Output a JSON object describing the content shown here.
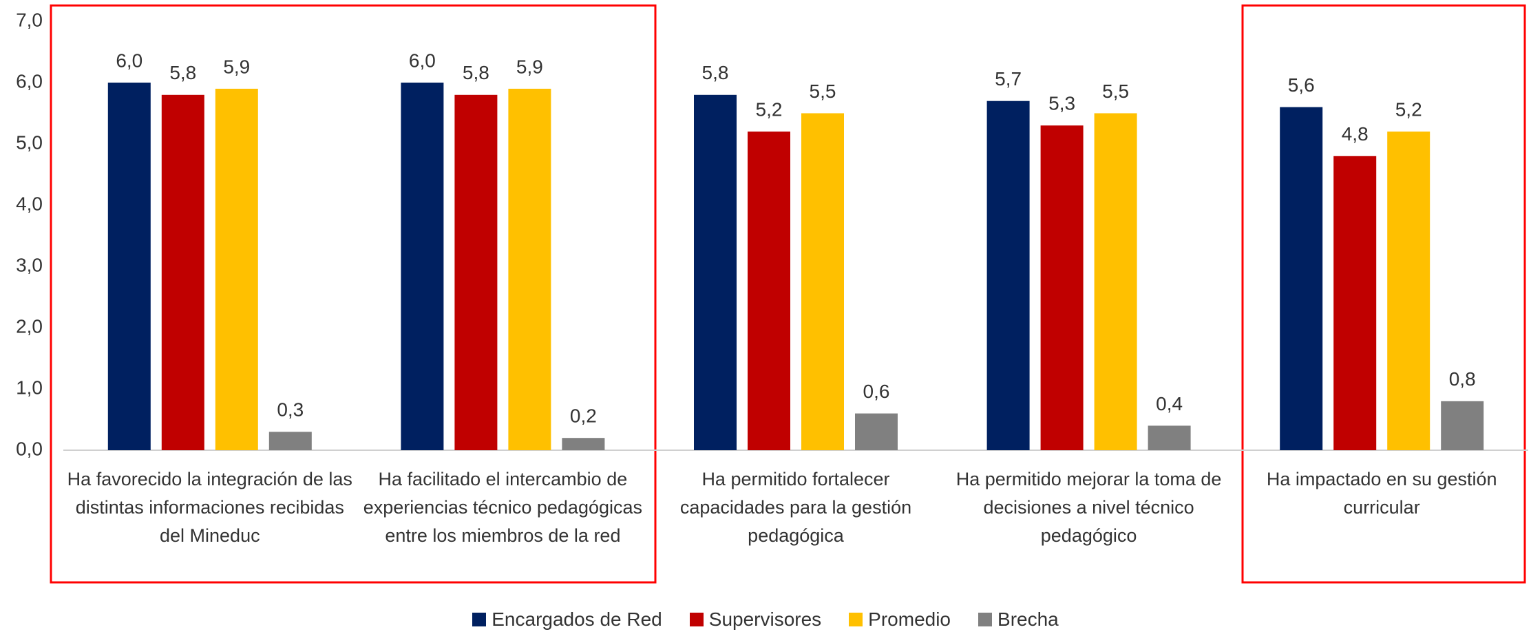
{
  "chart_data": {
    "type": "bar",
    "categories": [
      "Ha  favorecido la  integración de las  distintas informaciones recibidas del Mineduc",
      "Ha facilitado el intercambio de experiencias técnico pedagógicas entre los miembros de la red",
      "Ha permitido fortalecer capacidades para la gestión pedagógica",
      "Ha permitido mejorar la toma de decisiones a nivel técnico pedagógico",
      "Ha impactado en su gestión curricular"
    ],
    "series": [
      {
        "name": "Encargados de Red",
        "color": "#002060",
        "values": [
          6.0,
          6.0,
          5.8,
          5.7,
          5.6
        ],
        "value_labels": [
          "6,0",
          "6,0",
          "5,8",
          "5,7",
          "5,6"
        ]
      },
      {
        "name": "Supervisores",
        "color": "#c00000",
        "values": [
          5.8,
          5.8,
          5.2,
          5.3,
          4.8
        ],
        "value_labels": [
          "5,8",
          "5,8",
          "5,2",
          "5,3",
          "4,8"
        ]
      },
      {
        "name": "Promedio",
        "color": "#ffc000",
        "values": [
          5.9,
          5.9,
          5.5,
          5.5,
          5.2
        ],
        "value_labels": [
          "5,9",
          "5,9",
          "5,5",
          "5,5",
          "5,2"
        ]
      },
      {
        "name": "Brecha",
        "color": "#808080",
        "values": [
          0.3,
          0.2,
          0.6,
          0.4,
          0.8
        ],
        "value_labels": [
          "0,3",
          "0,2",
          "0,6",
          "0,4",
          "0,8"
        ]
      }
    ],
    "ylim": [
      0,
      7
    ],
    "yticks": [
      {
        "value": 0,
        "label": "0,0"
      },
      {
        "value": 1,
        "label": "1,0"
      },
      {
        "value": 2,
        "label": "2,0"
      },
      {
        "value": 3,
        "label": "3,0"
      },
      {
        "value": 4,
        "label": "4,0"
      },
      {
        "value": 5,
        "label": "5,0"
      },
      {
        "value": 6,
        "label": "6,0"
      },
      {
        "value": 7,
        "label": "7,0"
      }
    ],
    "grid": false,
    "legend": "bottom"
  }
}
